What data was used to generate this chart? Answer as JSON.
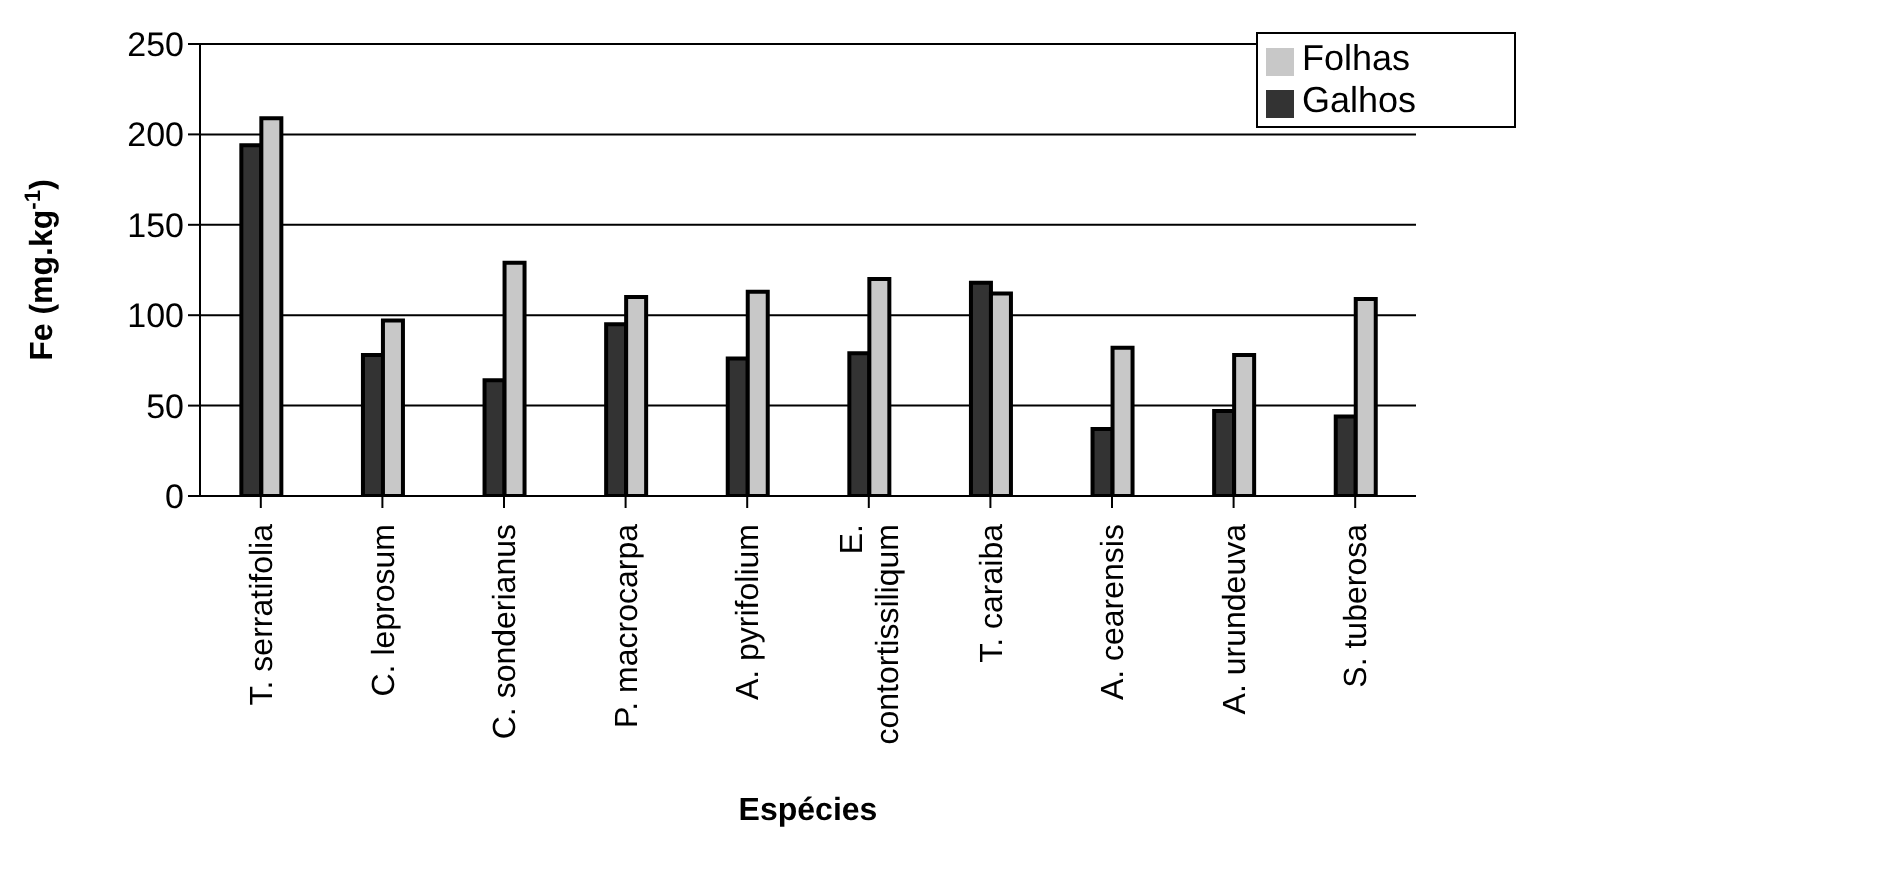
{
  "chart_data": {
    "type": "bar",
    "xlabel": "Espécies",
    "ylabel": "Fe (mg.kg$^{-1}$)",
    "categories": [
      "T. serratifolia",
      "C. leprosum",
      "C. sonderianus",
      "P. macrocarpa",
      "A. pyrifolium",
      "E. contortissiliqum",
      "T. caraiba",
      "A. cearensis",
      "A. urundeuva",
      "S. tuberosa"
    ],
    "series": [
      {
        "name": "Galhos",
        "color": "#333333",
        "values": [
          194,
          78,
          64,
          95,
          76,
          79,
          118,
          37,
          47,
          44
        ]
      },
      {
        "name": "Folhas",
        "color": "#c8c8c8",
        "values": [
          209,
          97,
          129,
          110,
          113,
          120,
          112,
          82,
          78,
          109
        ]
      }
    ],
    "ylim": [
      0,
      250
    ],
    "yticks": [
      0,
      50,
      100,
      150,
      200,
      250
    ],
    "grid": "y",
    "legend": "top right"
  }
}
